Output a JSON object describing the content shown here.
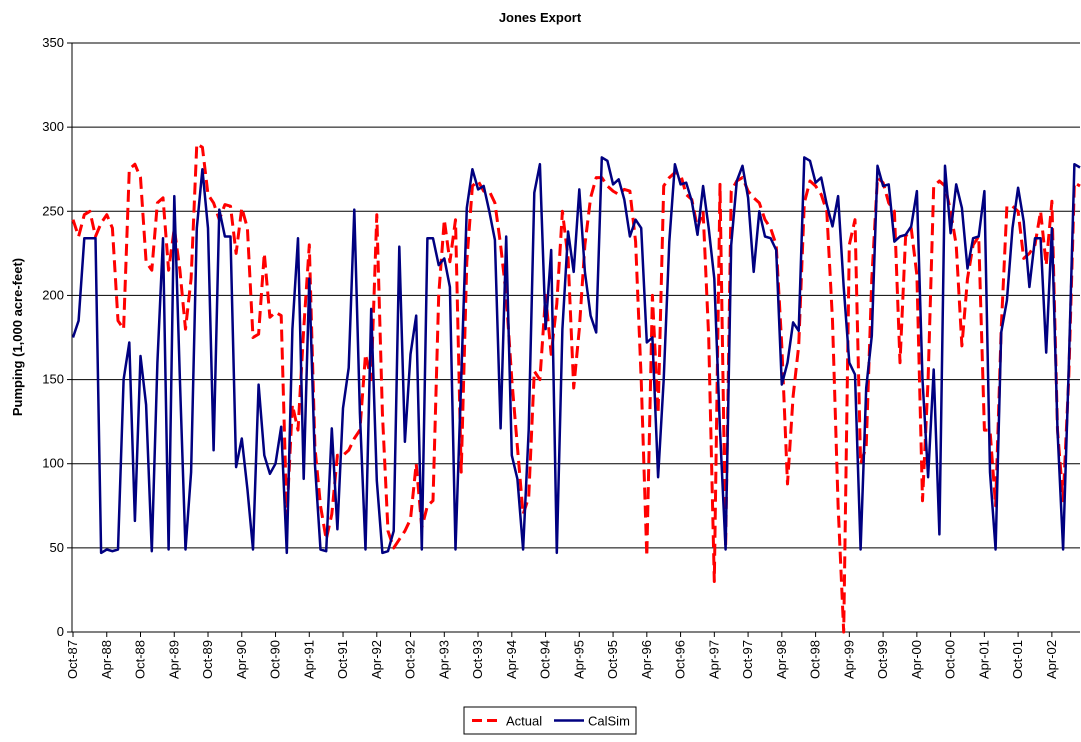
{
  "chart_data": {
    "type": "line",
    "title": "Jones Export",
    "y_label": "Pumping (1,000 acre-feet)",
    "categories": [
      "Oct-87",
      null,
      null,
      null,
      null,
      null,
      "Apr-88",
      null,
      null,
      null,
      null,
      null,
      "Oct-88",
      null,
      null,
      null,
      null,
      null,
      "Apr-89",
      null,
      null,
      null,
      null,
      null,
      "Oct-89",
      null,
      null,
      null,
      null,
      null,
      "Apr-90",
      null,
      null,
      null,
      null,
      null,
      "Oct-90",
      null,
      null,
      null,
      null,
      null,
      "Apr-91",
      null,
      null,
      null,
      null,
      null,
      "Oct-91",
      null,
      null,
      null,
      null,
      null,
      "Apr-92",
      null,
      null,
      null,
      null,
      null,
      "Oct-92",
      null,
      null,
      null,
      null,
      null,
      "Apr-93",
      null,
      null,
      null,
      null,
      null,
      "Oct-93",
      null,
      null,
      null,
      null,
      null,
      "Apr-94",
      null,
      null,
      null,
      null,
      null,
      "Oct-94",
      null,
      null,
      null,
      null,
      null,
      "Apr-95",
      null,
      null,
      null,
      null,
      null,
      "Oct-95",
      null,
      null,
      null,
      null,
      null,
      "Apr-96",
      null,
      null,
      null,
      null,
      null,
      "Oct-96",
      null,
      null,
      null,
      null,
      null,
      "Apr-97",
      null,
      null,
      null,
      null,
      null,
      "Oct-97",
      null,
      null,
      null,
      null,
      null,
      "Apr-98",
      null,
      null,
      null,
      null,
      null,
      "Oct-98",
      null,
      null,
      null,
      null,
      null,
      "Apr-99",
      null,
      null,
      null,
      null,
      null,
      "Oct-99",
      null,
      null,
      null,
      null,
      null,
      "Apr-00",
      null,
      null,
      null,
      null,
      null,
      "Oct-00",
      null,
      null,
      null,
      null,
      null,
      "Apr-01",
      null,
      null,
      null,
      null,
      null,
      "Oct-01",
      null,
      null,
      null,
      null,
      null,
      "Apr-02",
      null,
      null,
      null,
      null,
      null
    ],
    "series": [
      {
        "name": "Actual",
        "color": "#ff0000",
        "dashed": true,
        "values": [
          245,
          235,
          248,
          250,
          235,
          243,
          248,
          240,
          185,
          180,
          275,
          278,
          270,
          220,
          215,
          255,
          258,
          215,
          240,
          215,
          180,
          210,
          290,
          288,
          260,
          255,
          245,
          254,
          253,
          225,
          252,
          240,
          175,
          177,
          225,
          187,
          190,
          188,
          68,
          135,
          120,
          180,
          230,
          110,
          75,
          55,
          70,
          105,
          105,
          108,
          115,
          120,
          165,
          150,
          248,
          130,
          60,
          50,
          55,
          60,
          67,
          100,
          62,
          75,
          78,
          200,
          245,
          220,
          245,
          95,
          220,
          265,
          268,
          262,
          262,
          255,
          230,
          200,
          150,
          110,
          70,
          80,
          155,
          150,
          200,
          165,
          195,
          250,
          222,
          145,
          180,
          230,
          258,
          270,
          270,
          265,
          262,
          260,
          263,
          262,
          232,
          150,
          45,
          200,
          130,
          265,
          270,
          273,
          272,
          260,
          257,
          240,
          250,
          175,
          30,
          266,
          50,
          262,
          268,
          270,
          262,
          258,
          255,
          245,
          240,
          230,
          170,
          88,
          140,
          170,
          255,
          268,
          265,
          260,
          250,
          185,
          75,
          0,
          230,
          245,
          100,
          110,
          210,
          270,
          267,
          255,
          250,
          160,
          235,
          240,
          212,
          78,
          150,
          265,
          268,
          265,
          250,
          230,
          170,
          210,
          230,
          235,
          120,
          120,
          75,
          180,
          253,
          253,
          250,
          222,
          225,
          230,
          250,
          218,
          256,
          120,
          78,
          150,
          267,
          265
        ]
      },
      {
        "name": "CalSim",
        "color": "#000080",
        "dashed": false,
        "values": [
          175,
          185,
          234,
          234,
          234,
          47,
          49,
          48,
          49,
          150,
          172,
          66,
          164,
          135,
          48,
          160,
          234,
          49,
          259,
          150,
          49,
          95,
          240,
          275,
          240,
          108,
          251,
          235,
          235,
          98,
          115,
          85,
          49,
          147,
          105,
          94,
          100,
          122,
          47,
          180,
          234,
          91,
          210,
          100,
          49,
          48,
          121,
          61,
          133,
          157,
          251,
          130,
          49,
          192,
          90,
          47,
          48,
          60,
          229,
          113,
          165,
          188,
          49,
          234,
          234,
          218,
          222,
          205,
          49,
          150,
          252,
          275,
          263,
          265,
          250,
          233,
          121,
          235,
          105,
          91,
          49,
          120,
          261,
          278,
          180,
          227,
          47,
          180,
          238,
          214,
          263,
          214,
          188,
          178,
          282,
          280,
          266,
          269,
          257,
          235,
          245,
          240,
          172,
          175,
          92,
          150,
          232,
          278,
          266,
          267,
          256,
          236,
          265,
          240,
          210,
          120,
          49,
          230,
          268,
          277,
          258,
          214,
          250,
          235,
          234,
          227,
          147,
          160,
          184,
          179,
          282,
          280,
          267,
          270,
          254,
          241,
          259,
          205,
          160,
          153,
          49,
          145,
          176,
          277,
          265,
          266,
          232,
          235,
          236,
          241,
          262,
          150,
          92,
          156,
          58,
          277,
          237,
          266,
          252,
          216,
          234,
          235,
          262,
          95,
          49,
          178,
          197,
          240,
          264,
          244,
          205,
          234,
          234,
          166,
          240,
          120,
          49,
          156,
          278,
          276
        ]
      }
    ],
    "ylim": [
      0,
      350
    ],
    "yticks": [
      0,
      50,
      100,
      150,
      200,
      250,
      300,
      350
    ],
    "grid": true,
    "legend": "bottom"
  }
}
